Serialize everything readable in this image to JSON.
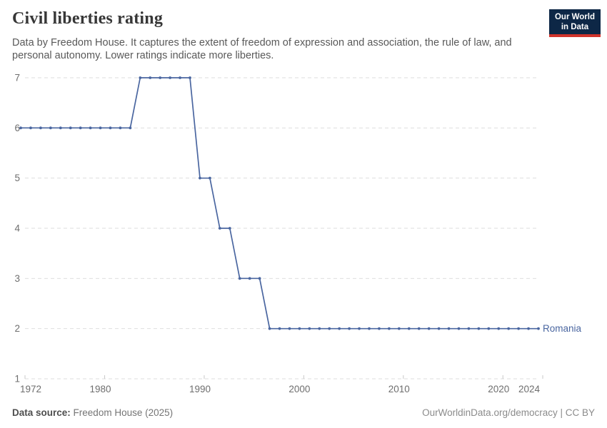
{
  "header": {
    "title": "Civil liberties rating",
    "subtitle_lines": [
      "Data by Freedom House. It captures the extent of freedom of expression and association, the rule of law, and",
      "personal autonomy. Lower ratings indicate more liberties."
    ],
    "logo_lines": [
      "Our World",
      "in Data"
    ]
  },
  "footer": {
    "data_source_label": "Data source:",
    "data_source_value": "Freedom House (2025)",
    "attribution": "OurWorldinData.org/democracy | CC BY"
  },
  "colors": {
    "line": "#4a66a0",
    "entity_label": "#4a66a0",
    "grid": "#dedede",
    "axis_tick": "#c9c9c9",
    "axis_text": "#6e6e6e",
    "logo_bg": "#0d2746",
    "logo_stripe": "#d0342c",
    "title_text": "#373737"
  },
  "chart_data": {
    "type": "line",
    "title": "Civil liberties rating",
    "xlabel": "",
    "ylabel": "",
    "xlim": [
      1972,
      2024
    ],
    "ylim": [
      1,
      7
    ],
    "y_ticks": [
      1,
      2,
      3,
      4,
      5,
      6,
      7
    ],
    "x_ticks": [
      1972,
      1980,
      1990,
      2000,
      2010,
      2020,
      2024
    ],
    "grid": "horizontal-dashed",
    "legend_position": "end-of-line-label",
    "x": [
      1972,
      1973,
      1974,
      1975,
      1976,
      1977,
      1978,
      1979,
      1980,
      1981,
      1982,
      1983,
      1984,
      1985,
      1986,
      1987,
      1988,
      1989,
      1990,
      1991,
      1992,
      1993,
      1994,
      1995,
      1996,
      1997,
      1998,
      1999,
      2000,
      2001,
      2002,
      2003,
      2004,
      2005,
      2006,
      2007,
      2008,
      2009,
      2010,
      2011,
      2012,
      2013,
      2014,
      2015,
      2016,
      2017,
      2018,
      2019,
      2020,
      2021,
      2022,
      2023,
      2024
    ],
    "series": [
      {
        "name": "Romania",
        "values": [
          6,
          6,
          6,
          6,
          6,
          6,
          6,
          6,
          6,
          6,
          6,
          6,
          7,
          7,
          7,
          7,
          7,
          7,
          5,
          5,
          4,
          4,
          3,
          3,
          3,
          2,
          2,
          2,
          2,
          2,
          2,
          2,
          2,
          2,
          2,
          2,
          2,
          2,
          2,
          2,
          2,
          2,
          2,
          2,
          2,
          2,
          2,
          2,
          2,
          2,
          2,
          2,
          2
        ]
      }
    ]
  }
}
